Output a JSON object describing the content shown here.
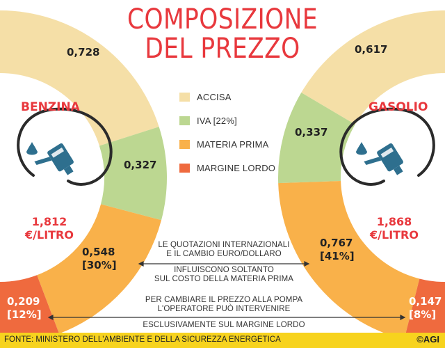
{
  "title": {
    "line1": "COMPOSIZIONE",
    "line2": "DEL PREZZO"
  },
  "colors": {
    "accisa": "#f5dfa7",
    "iva": "#bcd791",
    "materia_prima": "#f9b14a",
    "margine_lordo": "#ef6a3e",
    "accent": "#e8383d",
    "footer": "#f7d31e"
  },
  "chart_data": [
    {
      "type": "pie",
      "subtype": "donut",
      "title": "BENZINA",
      "categories": [
        "ACCISA",
        "IVA [22%]",
        "MATERIA PRIMA",
        "MARGINE LORDO"
      ],
      "values": [
        0.728,
        0.327,
        0.548,
        0.209
      ],
      "value_labels": [
        "0,728",
        "0,327",
        "0,548\n[30%]",
        "0,209\n[12%]"
      ],
      "total_label": "1,812\n€/LITRO"
    },
    {
      "type": "pie",
      "subtype": "donut",
      "title": "GASOLIO",
      "categories": [
        "ACCISA",
        "IVA [22%]",
        "MATERIA PRIMA",
        "MARGINE LORDO"
      ],
      "values": [
        0.617,
        0.337,
        0.767,
        0.147
      ],
      "value_labels": [
        "0,617",
        "0,337",
        "0,767\n[41%]",
        "0,147\n[8%]"
      ],
      "total_label": "1,868\n€/LITRO"
    }
  ],
  "legend": [
    {
      "label": "ACCISA",
      "color": "#f5dfa7"
    },
    {
      "label": "IVA [22%]",
      "color": "#bcd791"
    },
    {
      "label": "MATERIA PRIMA",
      "color": "#f9b14a"
    },
    {
      "label": "MARGINE LORDO",
      "color": "#ef6a3e"
    }
  ],
  "benzina": {
    "name": "BENZINA",
    "price": "1,812",
    "unit": "€/LITRO",
    "accisa": "0,728",
    "iva": "0,327",
    "materia": "0,548",
    "materia_pct": "[30%]",
    "margine": "0,209",
    "margine_pct": "[12%]"
  },
  "gasolio": {
    "name": "GASOLIO",
    "price": "1,868",
    "unit": "€/LITRO",
    "accisa": "0,617",
    "iva": "0,337",
    "materia": "0,767",
    "materia_pct": "[41%]",
    "margine": "0,147",
    "margine_pct": "[8%]"
  },
  "notes": {
    "materia_1": "LE QUOTAZIONI INTERNAZIONALI",
    "materia_2": "E IL CAMBIO EURO/DOLLARO",
    "materia_3": "INFLUISCONO SOLTANTO",
    "materia_4": "SUL COSTO DELLA MATERIA PRIMA",
    "margine_1": "PER CAMBIARE IL PREZZO ALLA POMPA",
    "margine_2": "L'OPERATORE PUÒ INTERVENIRE",
    "margine_3": "ESCLUSIVAMENTE SUL MARGINE LORDO"
  },
  "footer": {
    "source": "FONTE: MINISTERO DELL'AMBIENTE E DELLA SICUREZZA ENERGETICA",
    "credit": "©AGI"
  }
}
